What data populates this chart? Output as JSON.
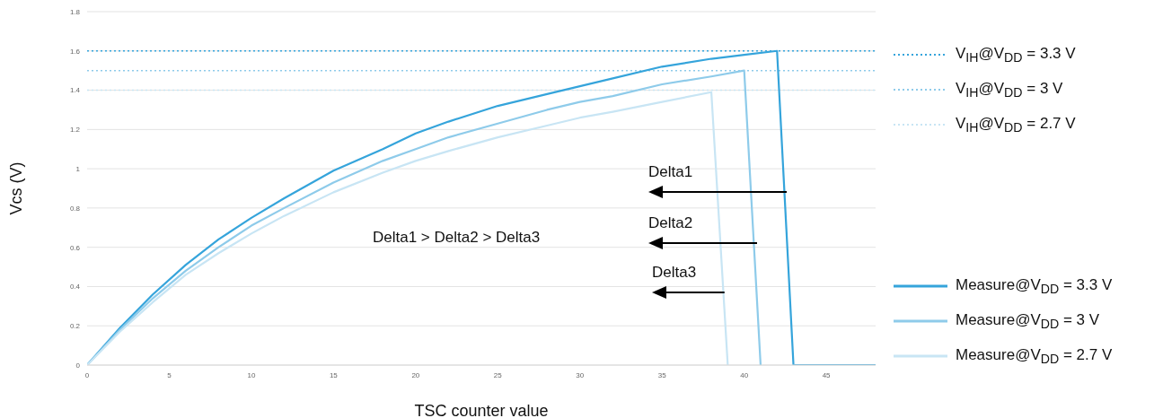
{
  "chart_data": {
    "type": "line",
    "xlabel": "TSC counter value",
    "ylabel": "Vcs (V)",
    "xlim": [
      0,
      48
    ],
    "xticks": [
      0,
      5,
      10,
      15,
      20,
      25,
      30,
      35,
      40,
      45
    ],
    "ylim": [
      0,
      1.8
    ],
    "yticks": [
      0,
      0.2,
      0.4,
      0.6,
      0.8,
      1,
      1.2,
      1.4,
      1.6,
      1.8
    ],
    "grid": "y",
    "legend": "right",
    "marker": "none",
    "series": [
      {
        "name": "V$_{IH}$@V$_{DD}$ = 3.3 V",
        "color": "#35a4db",
        "line_style": "dotted",
        "x": [
          0,
          48
        ],
        "values": [
          1.6,
          1.6
        ]
      },
      {
        "name": "V$_{IH}$@V$_{DD}$ = 3 V",
        "color": "#8ecbea",
        "line_style": "dotted",
        "x": [
          0,
          48
        ],
        "values": [
          1.5,
          1.5
        ]
      },
      {
        "name": "V$_{IH}$@V$_{DD}$ = 2.7 V",
        "color": "#c8e5f4",
        "line_style": "dotted",
        "x": [
          0,
          48
        ],
        "values": [
          1.4,
          1.4
        ]
      },
      {
        "name": "Measure@V$_{DD}$ = 3.3 V",
        "color": "#35a4db",
        "line_style": "solid",
        "x": [
          0,
          2,
          4,
          6,
          8,
          10,
          12,
          15,
          18,
          20,
          22,
          25,
          28,
          30,
          32,
          35,
          38,
          40,
          42,
          43,
          48
        ],
        "values": [
          0,
          0.19,
          0.36,
          0.51,
          0.64,
          0.75,
          0.85,
          0.99,
          1.1,
          1.18,
          1.24,
          1.32,
          1.38,
          1.42,
          1.46,
          1.52,
          1.56,
          1.58,
          1.6,
          0,
          0
        ]
      },
      {
        "name": "Measure@V$_{DD}$ = 3 V",
        "color": "#8ecbea",
        "line_style": "solid",
        "x": [
          0,
          2,
          4,
          6,
          8,
          10,
          12,
          15,
          18,
          20,
          22,
          25,
          28,
          30,
          32,
          35,
          38,
          40,
          41
        ],
        "values": [
          0,
          0.18,
          0.34,
          0.48,
          0.6,
          0.71,
          0.8,
          0.93,
          1.04,
          1.1,
          1.16,
          1.23,
          1.3,
          1.34,
          1.37,
          1.43,
          1.47,
          1.5,
          0
        ]
      },
      {
        "name": "Measure@V$_{DD}$ = 2.7 V",
        "color": "#c8e5f4",
        "line_style": "solid",
        "x": [
          0,
          2,
          4,
          6,
          8,
          10,
          12,
          15,
          18,
          20,
          22,
          25,
          28,
          30,
          32,
          35,
          38,
          39
        ],
        "values": [
          0,
          0.17,
          0.32,
          0.46,
          0.57,
          0.67,
          0.76,
          0.88,
          0.98,
          1.04,
          1.09,
          1.16,
          1.22,
          1.26,
          1.29,
          1.34,
          1.39,
          0
        ]
      }
    ],
    "annotations": [
      {
        "text": "Delta1",
        "x": 42.6,
        "y": 0.88
      },
      {
        "text": "Delta2",
        "x": 40.8,
        "y": 0.62
      },
      {
        "text": "Delta3",
        "x": 38.8,
        "y": 0.37
      },
      "Delta1 > Delta2 > Delta3"
    ]
  }
}
